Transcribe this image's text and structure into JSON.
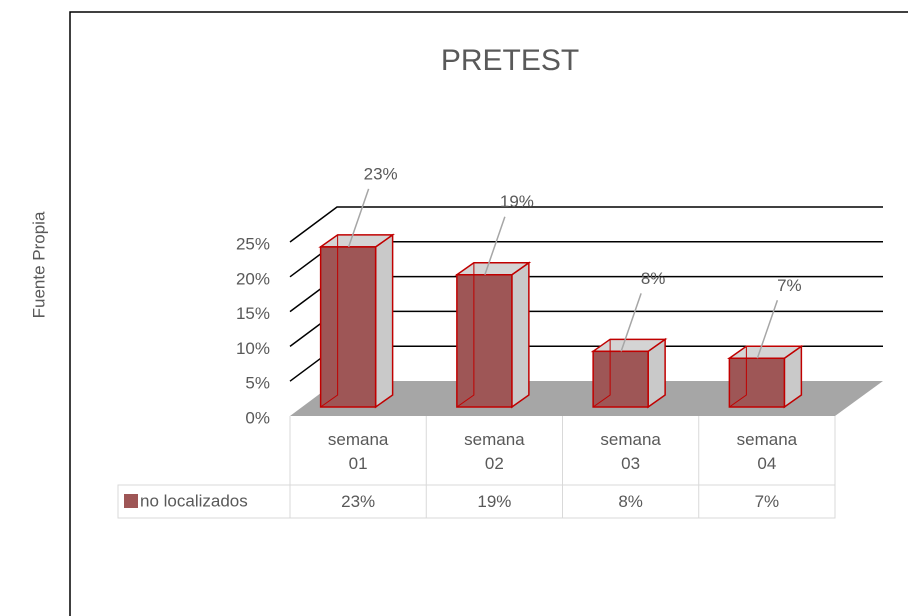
{
  "chart_data": {
    "type": "bar3d",
    "title": "PRETEST",
    "side_label": "Fuente Propia",
    "categories": [
      "semana 01",
      "semana 02",
      "semana 03",
      "semana 04"
    ],
    "series": [
      {
        "name": "no localizados",
        "color": "#9e5656",
        "values": [
          23,
          19,
          8,
          7
        ],
        "value_labels": [
          "23%",
          "19%",
          "8%",
          "7%"
        ]
      }
    ],
    "ylim": [
      0,
      25
    ],
    "yticks": [
      {
        "value": 0,
        "label": "0%"
      },
      {
        "value": 5,
        "label": "5%"
      },
      {
        "value": 10,
        "label": "10%"
      },
      {
        "value": 15,
        "label": "15%"
      },
      {
        "value": 20,
        "label": "20%"
      },
      {
        "value": 25,
        "label": "25%"
      }
    ],
    "grid": true,
    "data_table": true
  }
}
